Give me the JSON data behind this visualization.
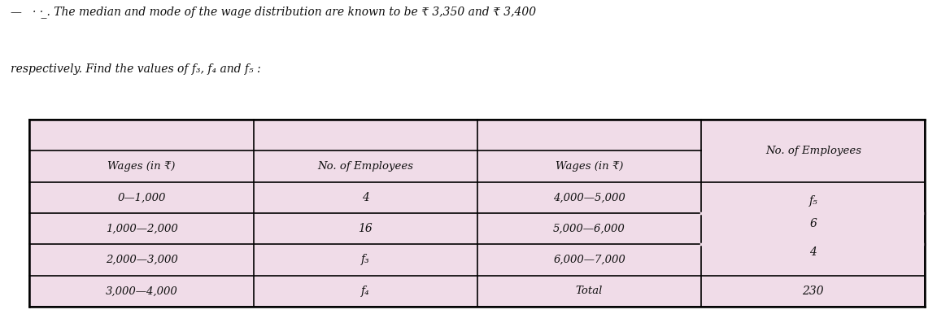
{
  "title_line1_left": "—   · · ·̲. The median and mode of the wage distribution are known to be ₹ 3,350 and ₹ 3,400",
  "title_line2": "respectively. Find the values of f₃, f₄ and f₅ :",
  "col1_wages": [
    "0—1,000",
    "1,000—2,000",
    "2,000—3,000",
    "3,000—4,000"
  ],
  "col1_emp": [
    "4",
    "16",
    "f₃",
    "f₄"
  ],
  "col2_wages": [
    "4,000—5,000",
    "5,000—6,000",
    "6,000—7,000",
    "Total"
  ],
  "col2_emp_vals": [
    "f₅",
    "6",
    "4",
    "230"
  ],
  "table_bg": "#f0dce8",
  "border_color": "#000000",
  "page_bg": "#ffffff",
  "text_color": "#111111"
}
